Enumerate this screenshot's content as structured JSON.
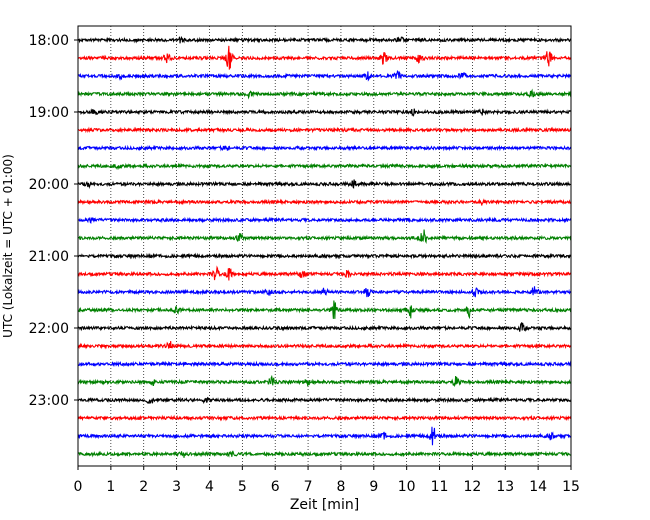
{
  "chart_data": {
    "type": "line",
    "title": "",
    "xlabel": "Zeit  [min]",
    "ylabel": "UTC (Lokalzeit = UTC + 01:00)",
    "xlim": [
      0,
      15
    ],
    "x_ticks": [
      "0",
      "1",
      "2",
      "3",
      "4",
      "5",
      "6",
      "7",
      "8",
      "9",
      "10",
      "11",
      "12",
      "13",
      "14",
      "15"
    ],
    "y_ticks": [
      "18:00",
      "19:00",
      "20:00",
      "21:00",
      "22:00",
      "23:00"
    ],
    "grid": "vertical dotted",
    "legend": "none",
    "colors": [
      "#000000",
      "#ff0000",
      "#0000ff",
      "#008000"
    ],
    "rows": [
      {
        "start": "18:00",
        "color": "#000000",
        "events": [
          [
            3.1,
            0.22
          ],
          [
            9.8,
            0.3
          ]
        ]
      },
      {
        "start": "18:15",
        "color": "#ff0000",
        "events": [
          [
            2.7,
            0.45
          ],
          [
            4.6,
            1.0
          ],
          [
            9.3,
            0.5
          ],
          [
            10.4,
            0.4
          ],
          [
            14.3,
            0.9
          ]
        ]
      },
      {
        "start": "18:30",
        "color": "#0000ff",
        "events": [
          [
            1.3,
            0.2
          ],
          [
            8.8,
            0.35
          ],
          [
            9.7,
            0.4
          ],
          [
            11.7,
            0.3
          ]
        ]
      },
      {
        "start": "18:45",
        "color": "#008000",
        "events": [
          [
            5.2,
            0.22
          ],
          [
            13.8,
            0.2
          ]
        ]
      },
      {
        "start": "19:00",
        "color": "#000000",
        "events": [
          [
            0.5,
            0.2
          ],
          [
            10.2,
            0.25
          ],
          [
            12.3,
            0.2
          ]
        ]
      },
      {
        "start": "19:15",
        "color": "#ff0000",
        "events": []
      },
      {
        "start": "19:30",
        "color": "#0000ff",
        "events": [
          [
            4.5,
            0.2
          ]
        ]
      },
      {
        "start": "19:45",
        "color": "#008000",
        "events": [
          [
            1.2,
            0.2
          ]
        ]
      },
      {
        "start": "20:00",
        "color": "#000000",
        "events": [
          [
            0.3,
            0.2
          ],
          [
            8.4,
            0.3
          ]
        ]
      },
      {
        "start": "20:15",
        "color": "#ff0000",
        "events": [
          [
            12.3,
            0.2
          ]
        ]
      },
      {
        "start": "20:30",
        "color": "#0000ff",
        "events": [
          [
            0.4,
            0.2
          ]
        ]
      },
      {
        "start": "20:45",
        "color": "#008000",
        "events": [
          [
            4.9,
            0.45
          ],
          [
            10.5,
            0.8
          ]
        ]
      },
      {
        "start": "21:00",
        "color": "#000000",
        "events": []
      },
      {
        "start": "21:15",
        "color": "#ff0000",
        "events": [
          [
            4.2,
            0.55
          ],
          [
            4.6,
            0.5
          ],
          [
            6.8,
            0.35
          ],
          [
            8.2,
            0.25
          ]
        ]
      },
      {
        "start": "21:30",
        "color": "#0000ff",
        "events": [
          [
            5.8,
            0.3
          ],
          [
            7.5,
            0.3
          ],
          [
            8.8,
            0.45
          ],
          [
            12.1,
            0.3
          ],
          [
            13.9,
            0.5
          ]
        ]
      },
      {
        "start": "21:45",
        "color": "#008000",
        "events": [
          [
            3.0,
            0.3
          ],
          [
            7.8,
            0.8
          ],
          [
            10.1,
            0.7
          ],
          [
            11.9,
            0.6
          ]
        ]
      },
      {
        "start": "22:00",
        "color": "#000000",
        "events": [
          [
            13.5,
            0.4
          ]
        ]
      },
      {
        "start": "22:15",
        "color": "#ff0000",
        "events": [
          [
            2.8,
            0.35
          ]
        ]
      },
      {
        "start": "22:30",
        "color": "#0000ff",
        "events": []
      },
      {
        "start": "22:45",
        "color": "#008000",
        "events": [
          [
            2.3,
            0.25
          ],
          [
            5.9,
            0.45
          ],
          [
            7.0,
            0.3
          ],
          [
            11.5,
            0.45
          ]
        ]
      },
      {
        "start": "23:00",
        "color": "#000000",
        "events": [
          [
            2.2,
            0.4
          ],
          [
            3.9,
            0.2
          ]
        ]
      },
      {
        "start": "23:15",
        "color": "#ff0000",
        "events": []
      },
      {
        "start": "23:30",
        "color": "#0000ff",
        "events": [
          [
            9.3,
            0.25
          ],
          [
            10.8,
            0.8
          ],
          [
            14.4,
            0.3
          ]
        ]
      },
      {
        "start": "23:45",
        "color": "#008000",
        "events": [
          [
            3.2,
            0.25
          ],
          [
            4.7,
            0.2
          ]
        ]
      }
    ]
  }
}
